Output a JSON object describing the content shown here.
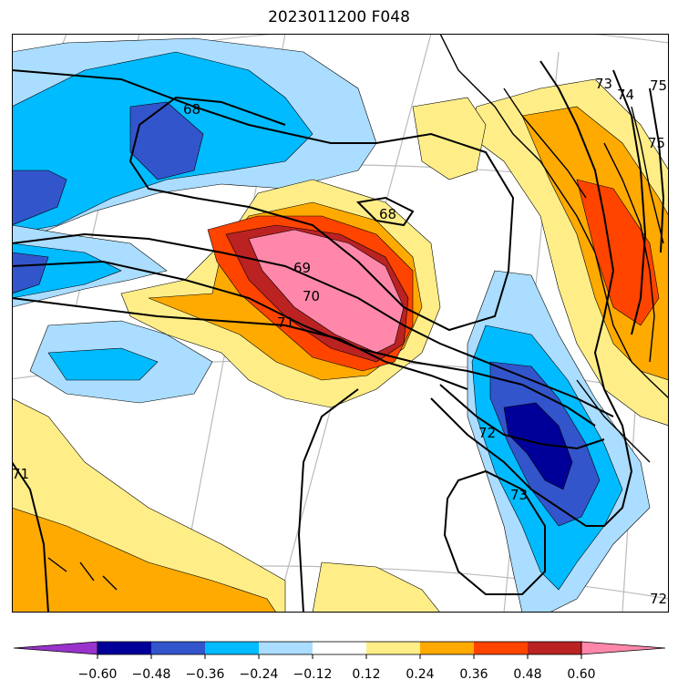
{
  "title": "2023011200 F048",
  "contour_labels": [
    "68",
    "68",
    "69",
    "70",
    "71",
    "72",
    "73",
    "71",
    "73",
    "74",
    "75",
    "75",
    "72"
  ],
  "colorbar": {
    "colors": [
      "#9933cc",
      "#000099",
      "#3355cc",
      "#00bbff",
      "#aaddff",
      "#ffffff",
      "#ffee88",
      "#ffaa00",
      "#ff4400",
      "#bb2222",
      "#ff88aa"
    ],
    "tick_labels": [
      "−0.60",
      "−0.48",
      "−0.36",
      "−0.24",
      "−0.12",
      "0.12",
      "0.24",
      "0.36",
      "0.48",
      "0.60"
    ]
  }
}
